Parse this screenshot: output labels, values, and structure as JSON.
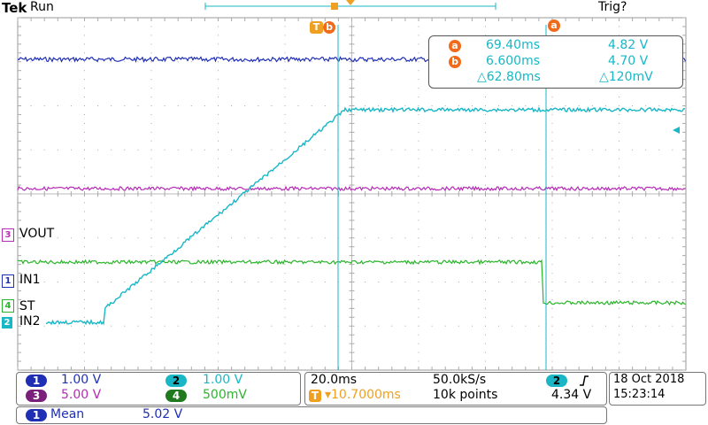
{
  "header": {
    "brand": "Tek",
    "run_status": "Run",
    "trigger_status": "Trig?"
  },
  "colors": {
    "ch1": "#1f2fb5",
    "ch2": "#19b7c6",
    "ch3": "#b52cb5",
    "ch4": "#2bb52b",
    "cursor_badge": "#f06a1a",
    "trigger_marker": "#f0a020"
  },
  "markers": {
    "cursor_a": "a",
    "cursor_b": "b",
    "trigger_t": "T"
  },
  "cursor_readout": {
    "a_time": "69.40ms",
    "a_volt": "4.82 V",
    "b_time": "6.600ms",
    "b_volt": "4.70 V",
    "delta_time": "△62.80ms",
    "delta_volt": "△120mV"
  },
  "channel_labels": {
    "ch3": "VOUT",
    "ch1": "IN1",
    "ch4": "ST",
    "ch2": "IN2"
  },
  "channel_numbers": {
    "ch1": "1",
    "ch2": "2",
    "ch3": "3",
    "ch4": "4"
  },
  "vertical_scales": {
    "ch1": "1.00 V",
    "ch2": "1.00 V",
    "ch3": "5.00 V",
    "ch4": "500mV"
  },
  "timebase": {
    "horizontal_scale": "20.0ms",
    "sample_rate": "50.0kS/s",
    "trigger_position": "▾10.7000ms",
    "record_length": "10k points",
    "trigger_source": "2",
    "trigger_level": "4.34 V",
    "trigger_slope_icon": "rising-edge-icon"
  },
  "date": {
    "date": "18 Oct  2018",
    "time": "15:23:14"
  },
  "measurement": {
    "source": "1",
    "name": "Mean",
    "value": "5.02 V"
  }
}
